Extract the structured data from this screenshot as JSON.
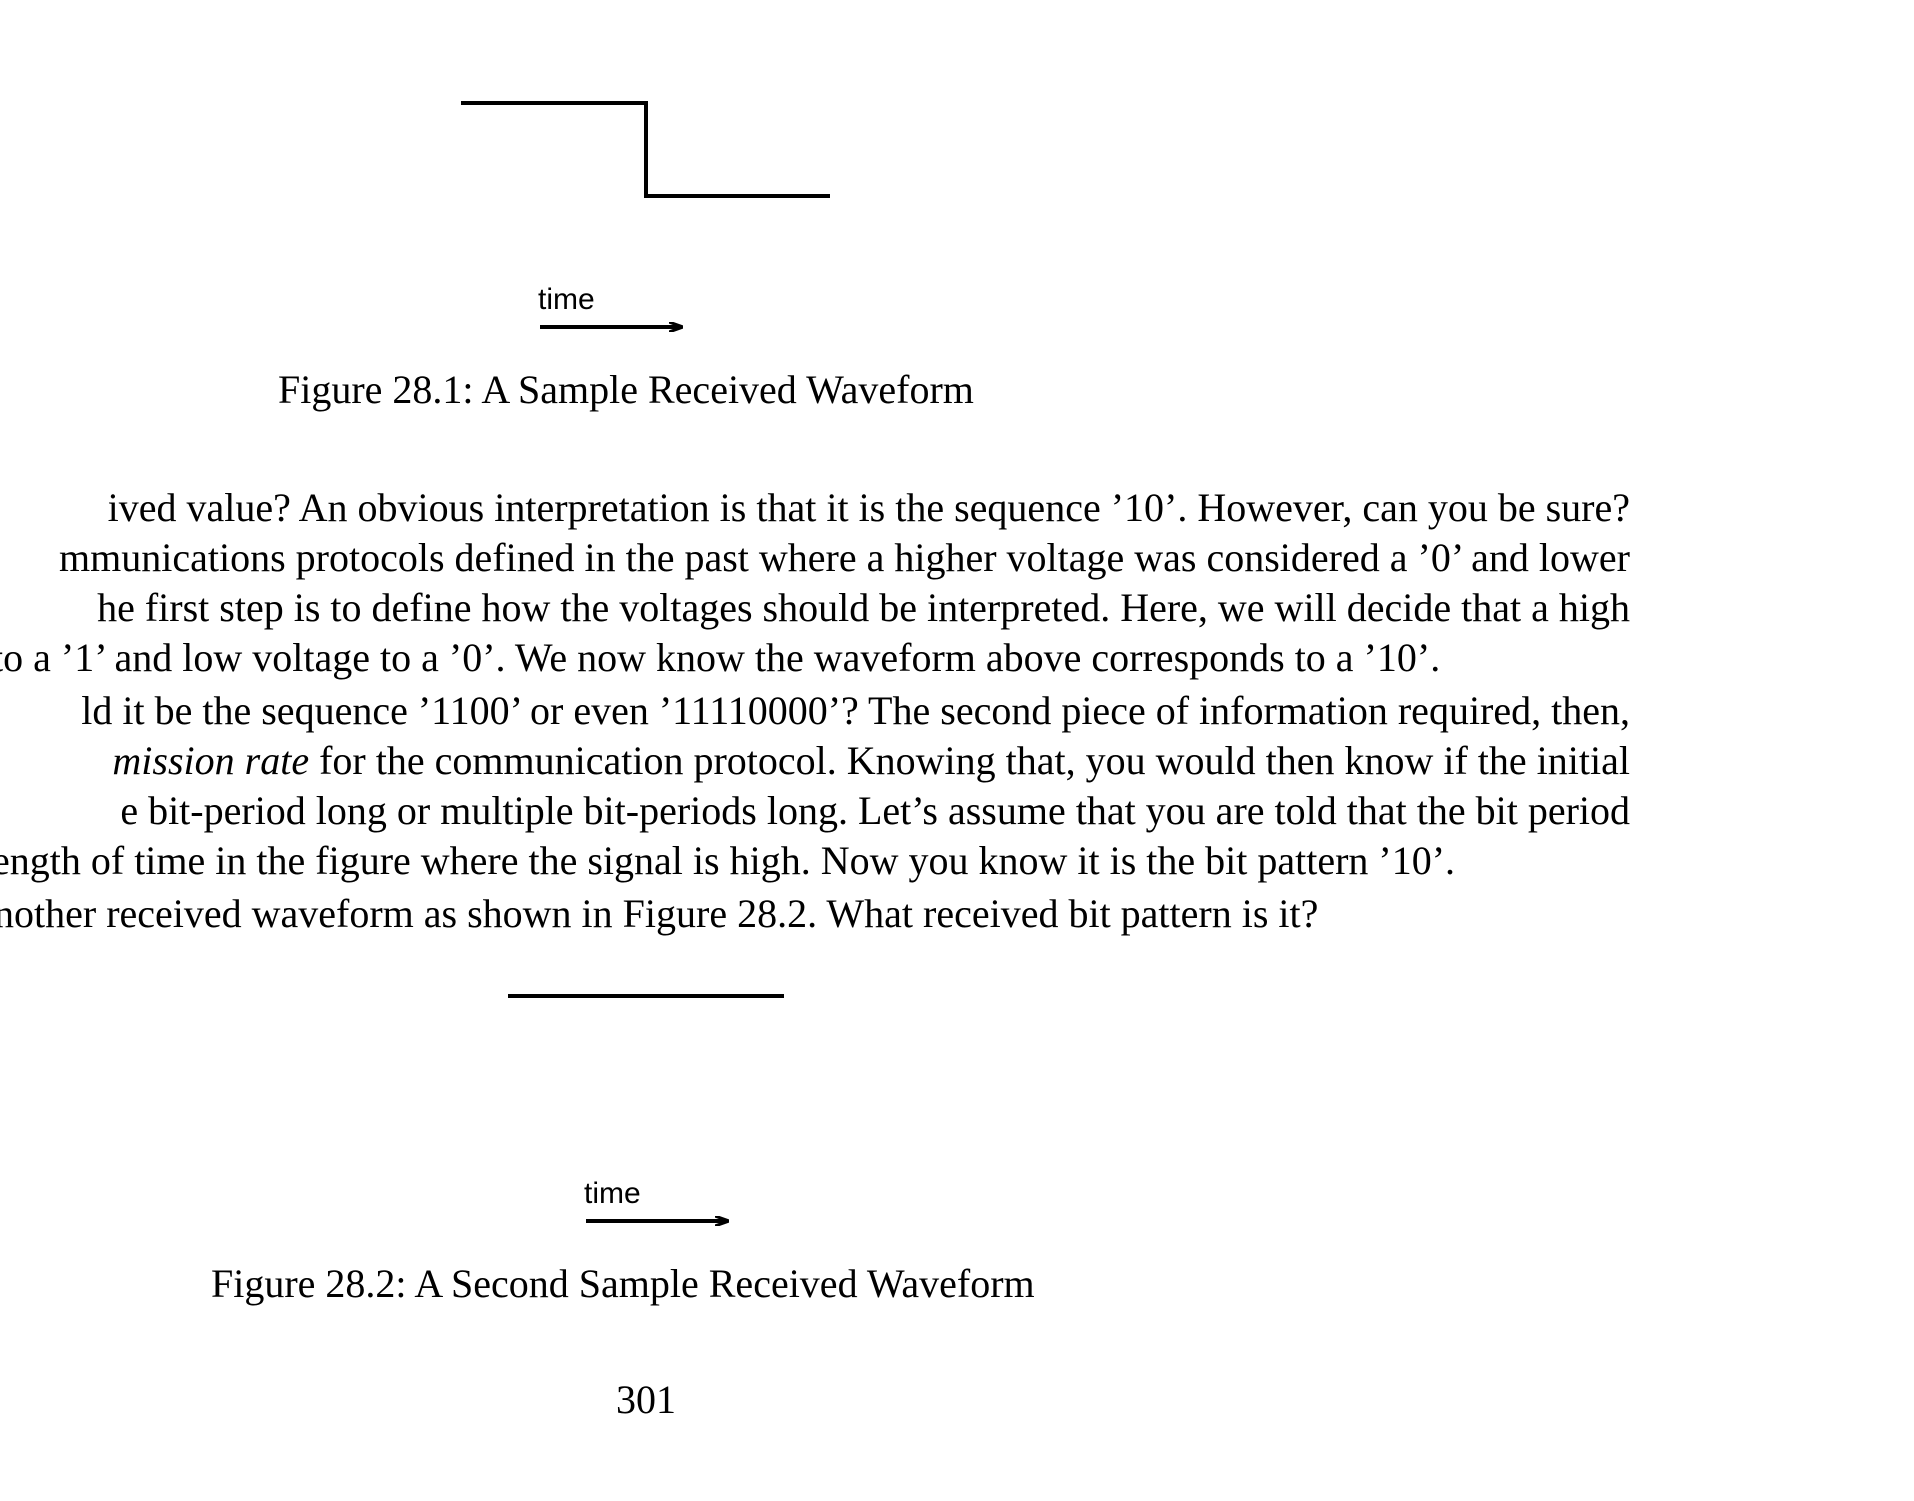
{
  "figures": [
    {
      "time_label": "time",
      "caption": "Figure 28.1: A Sample Received Waveform",
      "waveform_bits": [
        "1",
        "0"
      ]
    },
    {
      "time_label": "time",
      "caption": "Figure 28.2: A Second Sample Received Waveform",
      "waveform_bits": [
        "1"
      ]
    }
  ],
  "paragraph": {
    "lines": [
      "ived value?  An obvious interpretation is that it is the sequence ’10’.  However, can you be sure?",
      "mmunications protocols defined in the past where a higher voltage was considered a ’0’ and lower",
      "he first step is to define how the voltages should be interpreted.  Here, we will decide that a high",
      " to a ’1’ and low voltage to a ’0’. We now know the waveform above corresponds to a ’10’.",
      "ld it be the sequence ’1100’ or even ’11110000’? The second piece of information required, then,",
      "for the communication protocol.  Knowing that, you would then know if the initial",
      "e bit-period long or multiple bit-periods long.  Let’s assume that you are told that the bit period",
      "ength of time in the figure where the signal is high. Now you know it is the bit pattern ’10’.",
      "nother received waveform as shown in Figure 28.2. What received bit pattern is it?"
    ],
    "italic_fragment": "mission rate"
  },
  "page_number": "301"
}
